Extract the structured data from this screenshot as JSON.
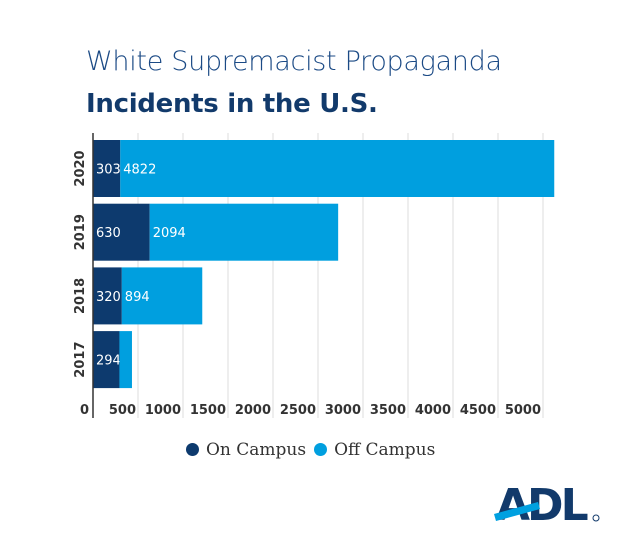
{
  "chart_data": {
    "type": "bar",
    "orientation": "horizontal",
    "stacked": true,
    "title": "White Supremacist Propaganda",
    "subtitle": "Incidents in the U.S.",
    "categories": [
      "2020",
      "2019",
      "2018",
      "2017"
    ],
    "series": [
      {
        "name": "On Campus",
        "color": "#0d3a6e",
        "values": [
          303,
          630,
          320,
          294
        ],
        "labels": [
          "303",
          "630",
          "320",
          "294"
        ]
      },
      {
        "name": "Off Campus",
        "color": "#009fdf",
        "values": [
          4822,
          2094,
          894,
          139
        ],
        "labels": [
          "4822",
          "2094",
          "894",
          ""
        ]
      }
    ],
    "xticks": [
      "0",
      "500",
      "1000",
      "1500",
      "2000",
      "2500",
      "3000",
      "3500",
      "4000",
      "4500",
      "5000"
    ],
    "xlim": [
      0,
      5150
    ],
    "grid": true,
    "legend": "bottom"
  },
  "logo": {
    "text": "ADL"
  }
}
